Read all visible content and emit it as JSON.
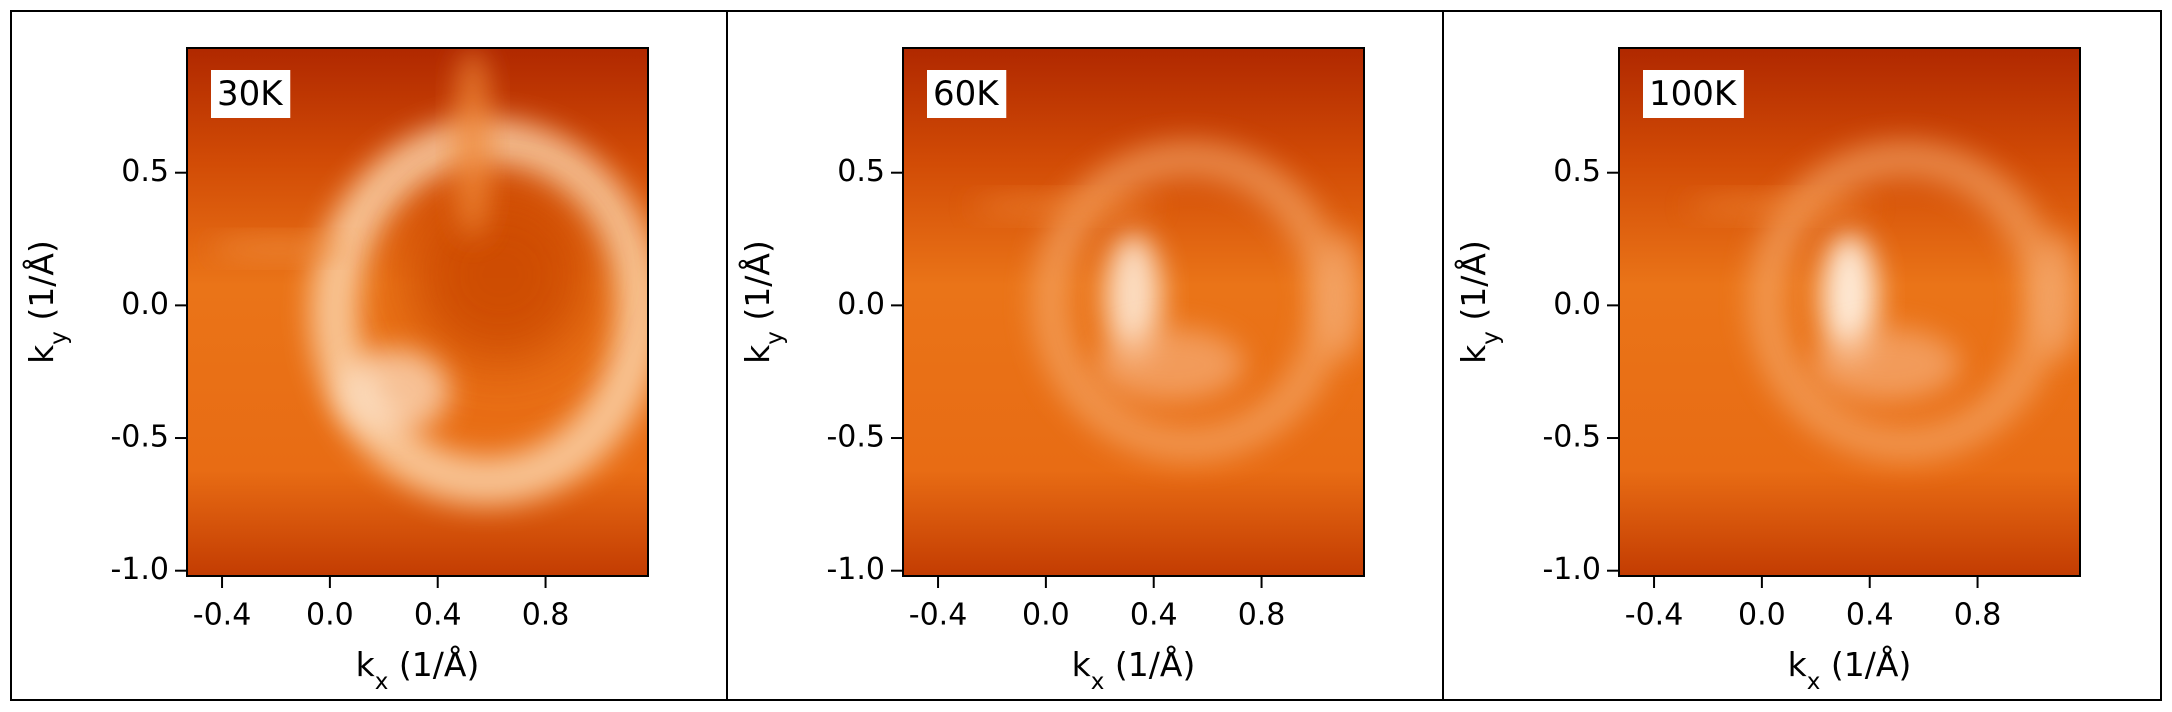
{
  "chart_data": [
    {
      "type": "heatmap",
      "label": "30K",
      "xlabel": {
        "symbol": "k",
        "subscript": "x",
        "unit": " (1/Å)"
      },
      "ylabel": {
        "symbol": "k",
        "subscript": "y",
        "unit": " (1/Å)"
      },
      "xlim": [
        -0.53,
        1.18
      ],
      "xticks": [
        -0.4,
        {
          "value": 0,
          "label": "0.0"
        },
        0.4,
        0.8
      ],
      "ylim": [
        -1.02,
        0.97
      ],
      "yticks": [
        {
          "value": -1,
          "label": "-1.0"
        },
        -0.5,
        {
          "value": 0,
          "label": "0.0"
        },
        0.5
      ]
    },
    {
      "type": "heatmap",
      "label": "60K",
      "xlabel": {
        "symbol": "k",
        "subscript": "x",
        "unit": " (1/Å)"
      },
      "ylabel": {
        "symbol": "k",
        "subscript": "y",
        "unit": " (1/Å)"
      },
      "xlim": [
        -0.53,
        1.18
      ],
      "xticks": [
        -0.4,
        {
          "value": 0,
          "label": "0.0"
        },
        0.4,
        0.8
      ],
      "ylim": [
        -1.02,
        0.97
      ],
      "yticks": [
        {
          "value": -1,
          "label": "-1.0"
        },
        -0.5,
        {
          "value": 0,
          "label": "0.0"
        },
        0.5
      ]
    },
    {
      "type": "heatmap",
      "label": "100K",
      "xlabel": {
        "symbol": "k",
        "subscript": "x",
        "unit": " (1/Å)"
      },
      "ylabel": {
        "symbol": "k",
        "subscript": "y",
        "unit": " (1/Å)"
      },
      "xlim": [
        -0.53,
        1.18
      ],
      "xticks": [
        -0.4,
        {
          "value": 0,
          "label": "0.0"
        },
        0.4,
        0.8
      ],
      "ylim": [
        -1.02,
        0.97
      ],
      "yticks": [
        {
          "value": -1,
          "label": "-1.0"
        },
        -0.5,
        {
          "value": 0,
          "label": "0.0"
        },
        0.5
      ]
    }
  ]
}
